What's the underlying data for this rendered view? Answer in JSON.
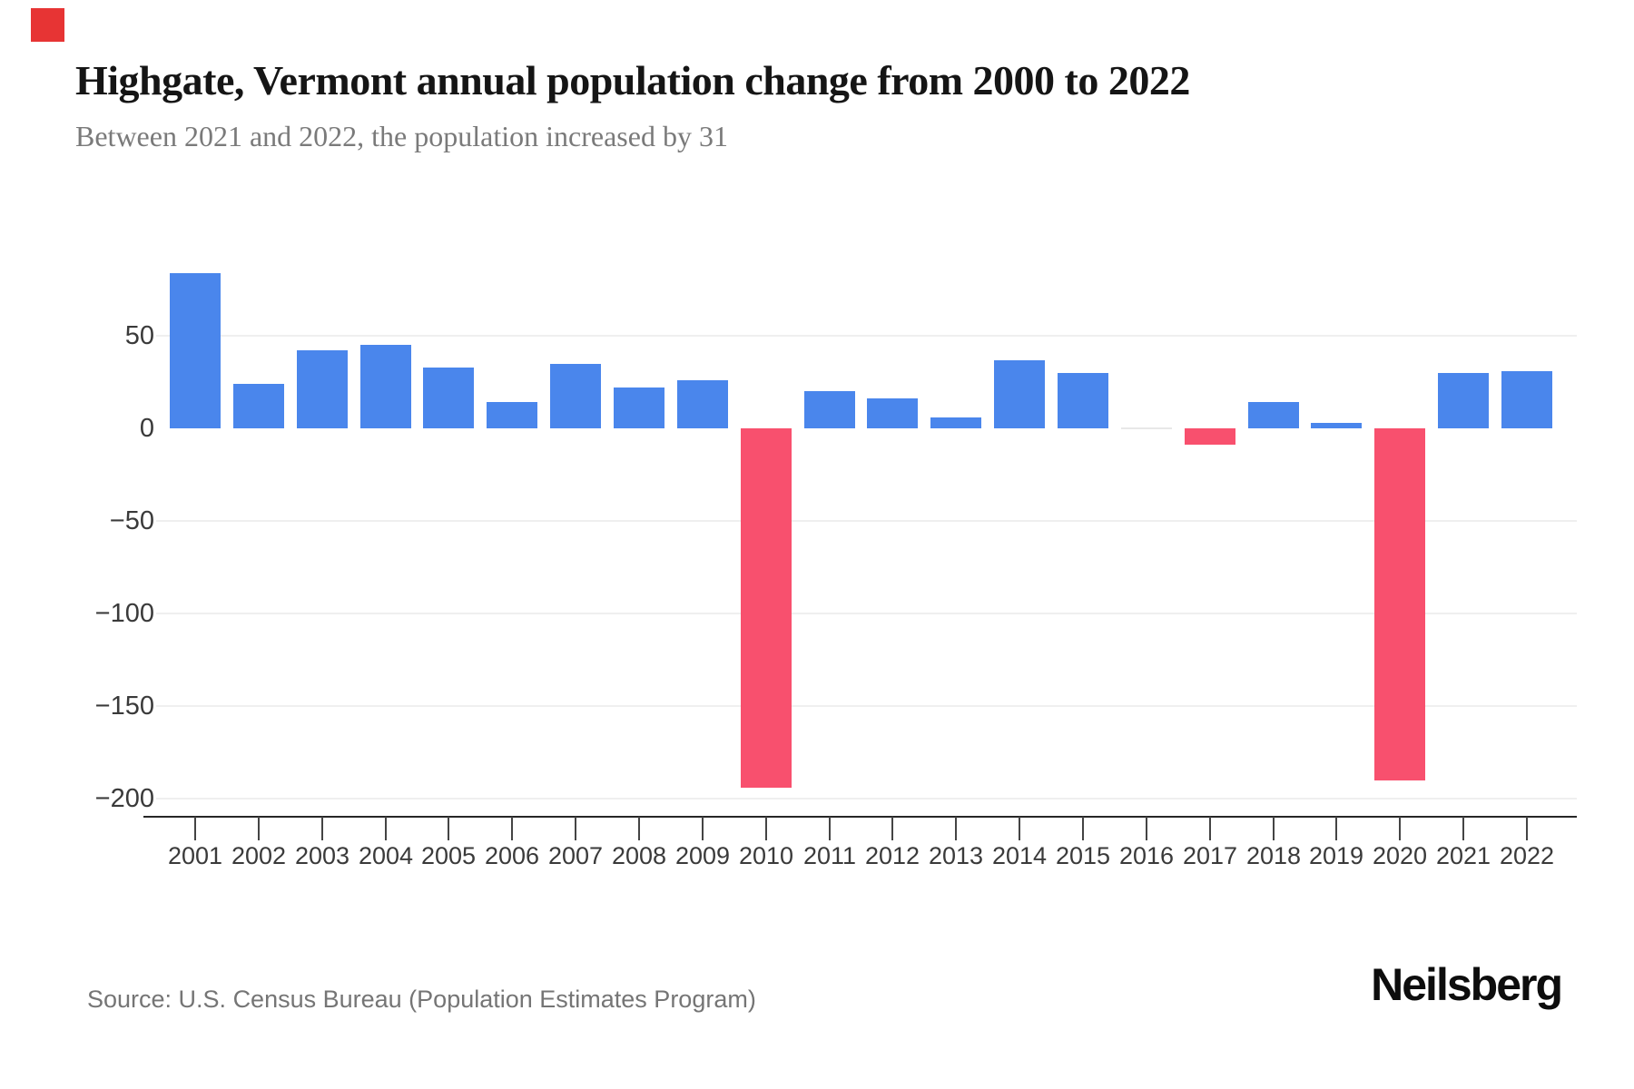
{
  "header": {
    "title": "Highgate, Vermont annual population change from 2000 to 2022",
    "subtitle": "Between 2021 and 2022, the population increased by 31"
  },
  "branding": {
    "logo_text": "Neilsberg",
    "accent_square_color": "#e73434"
  },
  "footer": {
    "source": "Source: U.S. Census Bureau (Population Estimates Program)"
  },
  "chart_data": {
    "type": "bar",
    "title": "Highgate, Vermont annual population change from 2000 to 2022",
    "categories": [
      "2001",
      "2002",
      "2003",
      "2004",
      "2005",
      "2006",
      "2007",
      "2008",
      "2009",
      "2010",
      "2011",
      "2012",
      "2013",
      "2014",
      "2015",
      "2016",
      "2017",
      "2018",
      "2019",
      "2020",
      "2021",
      "2022"
    ],
    "values": [
      84,
      24,
      42,
      45,
      33,
      14,
      35,
      22,
      26,
      -194,
      20,
      16,
      6,
      37,
      30,
      0,
      -9,
      14,
      3,
      -190,
      30,
      31
    ],
    "xlabel": "",
    "ylabel": "",
    "ylim": [
      -215,
      95
    ],
    "grid": "horizontal",
    "legend": "none",
    "y_ticks": [
      {
        "value": 50,
        "label": "50"
      },
      {
        "value": 0,
        "label": "0"
      },
      {
        "value": -50,
        "label": "−50"
      },
      {
        "value": -100,
        "label": "−100"
      },
      {
        "value": -150,
        "label": "−150"
      },
      {
        "value": -200,
        "label": "−200"
      }
    ],
    "colors": {
      "positive_bar": "#4a86ec",
      "negative_bar": "#f8506e",
      "zero_bar": "#e8e8e8",
      "gridline": "#efefef",
      "axis": "#262626",
      "tick": "#444444",
      "tick_label": "#3a3a3a"
    }
  }
}
